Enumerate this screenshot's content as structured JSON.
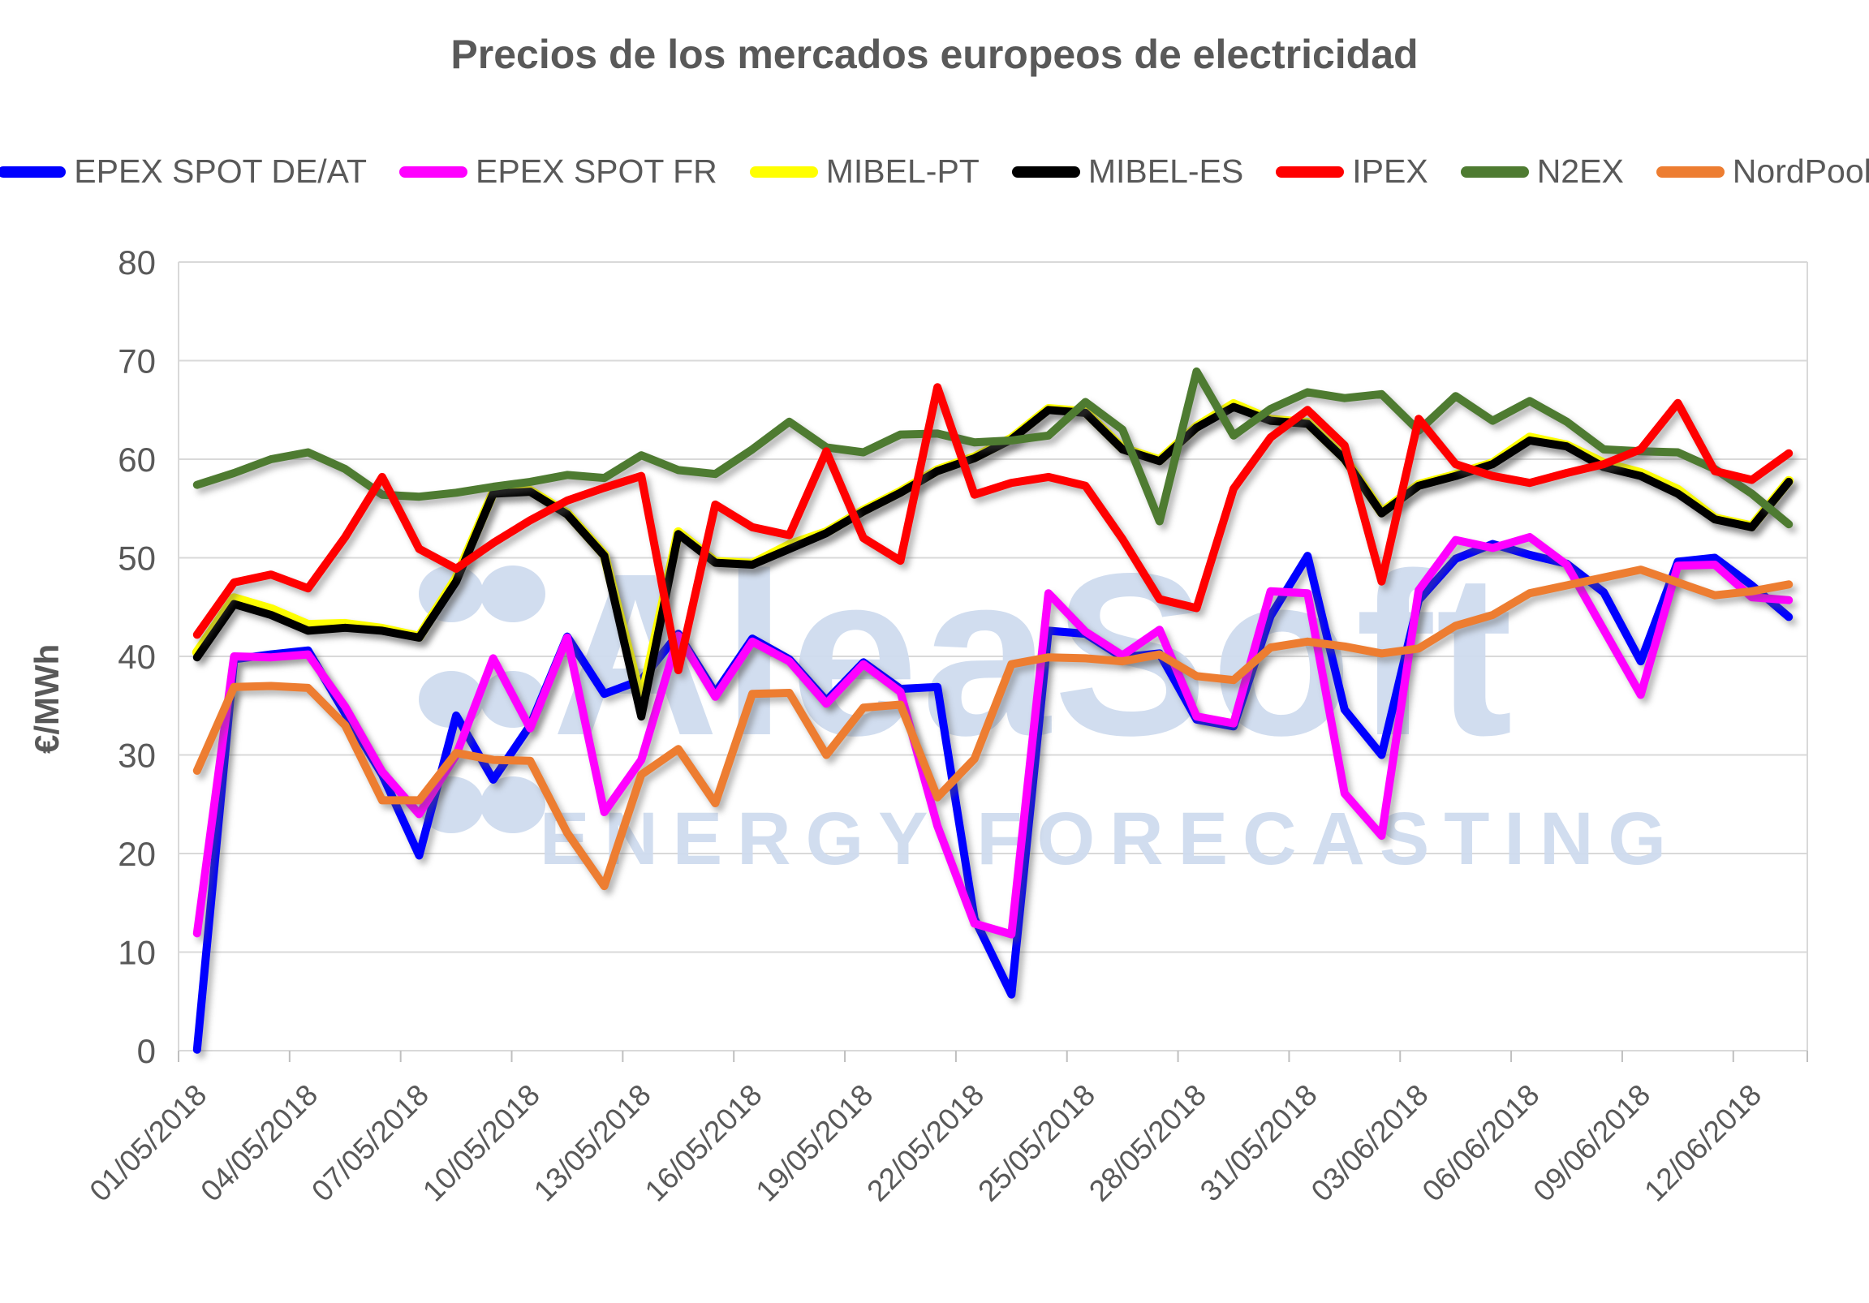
{
  "title": "Precios de los mercados europeos de electricidad",
  "watermark": {
    "line1": "AleaSoft",
    "line2": "ENERGY FORECASTING",
    "color": "#CFDCEF"
  },
  "axes": {
    "y_label": "€/MWh",
    "y_ticks": [
      0,
      10,
      20,
      30,
      40,
      50,
      60,
      70,
      80
    ],
    "x_tick_labels": [
      "01/05/2018",
      "04/05/2018",
      "07/05/2018",
      "10/05/2018",
      "13/05/2018",
      "16/05/2018",
      "19/05/2018",
      "22/05/2018",
      "25/05/2018",
      "28/05/2018",
      "31/05/2018",
      "03/06/2018",
      "06/06/2018",
      "09/06/2018",
      "12/06/2018"
    ]
  },
  "chart_data": {
    "type": "line",
    "title": "Precios de los mercados europeos de electricidad",
    "xlabel": "",
    "ylabel": "€/MWh",
    "ylim": [
      0,
      80
    ],
    "grid": true,
    "legend_position": "top",
    "x": [
      "01/05/2018",
      "02/05/2018",
      "03/05/2018",
      "04/05/2018",
      "05/05/2018",
      "06/05/2018",
      "07/05/2018",
      "08/05/2018",
      "09/05/2018",
      "10/05/2018",
      "11/05/2018",
      "12/05/2018",
      "13/05/2018",
      "14/05/2018",
      "15/05/2018",
      "16/05/2018",
      "17/05/2018",
      "18/05/2018",
      "19/05/2018",
      "20/05/2018",
      "21/05/2018",
      "22/05/2018",
      "23/05/2018",
      "24/05/2018",
      "25/05/2018",
      "26/05/2018",
      "27/05/2018",
      "28/05/2018",
      "29/05/2018",
      "30/05/2018",
      "31/05/2018",
      "01/06/2018",
      "02/06/2018",
      "03/06/2018",
      "04/06/2018",
      "05/06/2018",
      "06/06/2018",
      "07/06/2018",
      "08/06/2018",
      "09/06/2018",
      "10/06/2018",
      "11/06/2018",
      "12/06/2018",
      "13/06/2018"
    ],
    "series": [
      {
        "name": "EPEX SPOT DE/AT",
        "color": "#0000FF",
        "values": [
          0.1,
          39.7,
          40.2,
          40.6,
          34.2,
          28.0,
          19.8,
          34.0,
          27.5,
          33.0,
          42.0,
          36.2,
          37.6,
          42.3,
          36.3,
          41.8,
          39.7,
          35.5,
          39.4,
          36.7,
          36.9,
          13.4,
          5.7,
          42.6,
          42.3,
          39.9,
          40.3,
          33.6,
          32.9,
          44.1,
          50.2,
          34.6,
          30.0,
          45.7,
          49.9,
          51.4,
          50.3,
          49.4,
          46.5,
          39.5,
          49.6,
          50.0,
          47.2,
          44.0
        ]
      },
      {
        "name": "EPEX SPOT FR",
        "color": "#FF00FF",
        "values": [
          11.9,
          40.0,
          39.9,
          40.2,
          34.9,
          28.3,
          24.0,
          30.0,
          39.8,
          32.7,
          41.9,
          24.2,
          29.5,
          42.1,
          35.9,
          41.5,
          39.5,
          35.2,
          39.2,
          36.4,
          22.8,
          12.9,
          11.8,
          46.4,
          42.5,
          40.1,
          42.7,
          33.9,
          33.2,
          46.6,
          46.4,
          26.1,
          21.8,
          46.7,
          51.8,
          51.0,
          52.1,
          49.3,
          42.7,
          36.1,
          49.2,
          49.3,
          46.0,
          45.7
        ]
      },
      {
        "name": "MIBEL-PT",
        "color": "#FFFF00",
        "values": [
          40.4,
          45.9,
          44.8,
          43.2,
          43.3,
          42.8,
          42.0,
          47.9,
          56.6,
          56.8,
          54.5,
          50.3,
          35.4,
          52.6,
          49.6,
          49.4,
          51.3,
          52.6,
          54.8,
          56.7,
          58.9,
          60.2,
          62.1,
          65.1,
          64.8,
          61.1,
          59.9,
          63.3,
          65.6,
          64.0,
          63.7,
          60.1,
          54.6,
          57.4,
          58.4,
          59.6,
          62.2,
          61.4,
          59.6,
          58.6,
          56.9,
          54.0,
          53.2,
          57.8
        ]
      },
      {
        "name": "MIBEL-ES",
        "color": "#000000",
        "values": [
          39.9,
          45.3,
          44.2,
          42.6,
          42.9,
          42.6,
          41.9,
          47.6,
          56.5,
          56.7,
          54.4,
          50.2,
          33.9,
          52.4,
          49.5,
          49.3,
          50.9,
          52.5,
          54.7,
          56.6,
          58.8,
          60.1,
          62.0,
          65.0,
          64.7,
          61.0,
          59.8,
          63.2,
          65.3,
          63.9,
          63.6,
          60.0,
          54.5,
          57.3,
          58.3,
          59.5,
          61.9,
          61.3,
          59.2,
          58.3,
          56.5,
          53.9,
          53.1,
          57.7
        ]
      },
      {
        "name": "IPEX",
        "color": "#FF0000",
        "values": [
          42.2,
          47.5,
          48.3,
          46.9,
          52.1,
          58.2,
          50.9,
          48.9,
          51.5,
          53.8,
          55.8,
          57.1,
          58.3,
          38.6,
          55.4,
          53.1,
          52.3,
          60.8,
          52.0,
          49.7,
          67.3,
          56.4,
          57.6,
          58.2,
          57.3,
          51.9,
          45.8,
          44.9,
          57.0,
          62.2,
          65.0,
          61.4,
          47.6,
          64.1,
          59.5,
          58.3,
          57.6,
          58.6,
          59.5,
          61.0,
          65.7,
          58.8,
          57.9,
          60.6
        ]
      },
      {
        "name": "N2EX",
        "color": "#4E7B31",
        "values": [
          57.4,
          58.6,
          60.0,
          60.7,
          59.0,
          56.4,
          56.2,
          56.6,
          57.2,
          57.7,
          58.4,
          58.1,
          60.4,
          58.9,
          58.5,
          61.0,
          63.8,
          61.2,
          60.7,
          62.5,
          62.6,
          61.7,
          61.9,
          62.4,
          65.8,
          63.0,
          53.7,
          68.9,
          62.4,
          65.1,
          66.8,
          66.2,
          66.6,
          62.9,
          66.4,
          63.9,
          65.9,
          63.8,
          61.0,
          60.8,
          60.7,
          59.0,
          56.5,
          53.4
        ]
      },
      {
        "name": "NordPool",
        "color": "#ED7D31",
        "values": [
          28.4,
          36.9,
          37.0,
          36.8,
          33.0,
          25.4,
          25.4,
          30.2,
          29.5,
          29.4,
          22.1,
          16.7,
          28.0,
          30.6,
          25.1,
          36.2,
          36.3,
          30.0,
          34.8,
          35.1,
          25.7,
          29.6,
          39.2,
          39.9,
          39.8,
          39.5,
          40.2,
          38.0,
          37.6,
          40.9,
          41.5,
          41.0,
          40.3,
          40.8,
          43.1,
          44.2,
          46.4,
          47.2,
          48.0,
          48.8,
          47.5,
          46.2,
          46.6,
          47.3
        ]
      }
    ]
  }
}
